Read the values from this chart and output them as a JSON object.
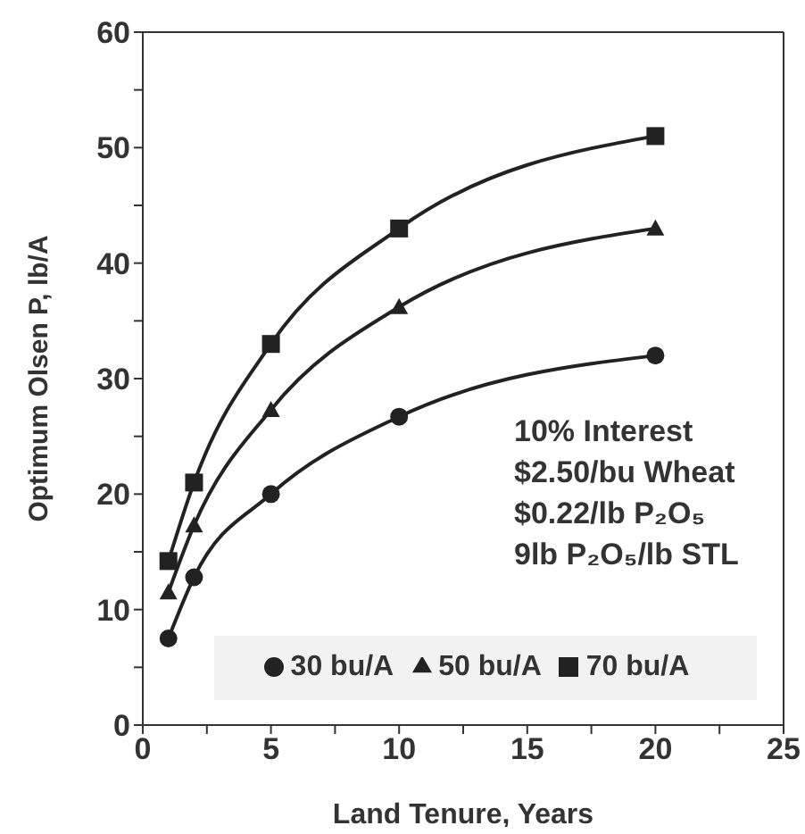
{
  "chart_data": {
    "type": "line",
    "xlabel": "Land Tenure, Years",
    "ylabel": "Optimum Olsen P, lb/A",
    "x": [
      1,
      2,
      5,
      10,
      20
    ],
    "series": [
      {
        "name": "30 bu/A",
        "color": "#222222",
        "marker": "circle",
        "values": [
          7.5,
          12.8,
          20,
          26.7,
          32
        ]
      },
      {
        "name": "50 bu/A",
        "color": "#222222",
        "marker": "triangle",
        "values": [
          11.5,
          17.3,
          27.3,
          36.2,
          43
        ]
      },
      {
        "name": "70 bu/A",
        "color": "#222222",
        "marker": "square",
        "values": [
          14.2,
          21,
          33,
          43,
          51
        ]
      }
    ],
    "xlim": [
      0,
      25
    ],
    "xticks": [
      0,
      {
        "value": 2.5,
        "label": null
      },
      5,
      {
        "value": 7.5,
        "label": null
      },
      10,
      {
        "value": 12.5,
        "label": null
      },
      15,
      {
        "value": 17.5,
        "label": null
      },
      20,
      {
        "value": 22.5,
        "label": null
      },
      25
    ],
    "ylim": [
      0,
      60
    ],
    "yticks": [
      0,
      {
        "value": 5,
        "label": null
      },
      10,
      {
        "value": 15,
        "label": null
      },
      20,
      {
        "value": 25,
        "label": null
      },
      30,
      {
        "value": 35,
        "label": null
      },
      40,
      {
        "value": 45,
        "label": null
      },
      50,
      {
        "value": 55,
        "label": null
      },
      60
    ],
    "annotations": [
      "10% Interest",
      "$2.50/bu Wheat",
      "$0.22/lb P₂O₅",
      "9lb P₂O₅/lb STL"
    ],
    "legend": "bottom",
    "grid": false,
    "line_style": "solid"
  }
}
